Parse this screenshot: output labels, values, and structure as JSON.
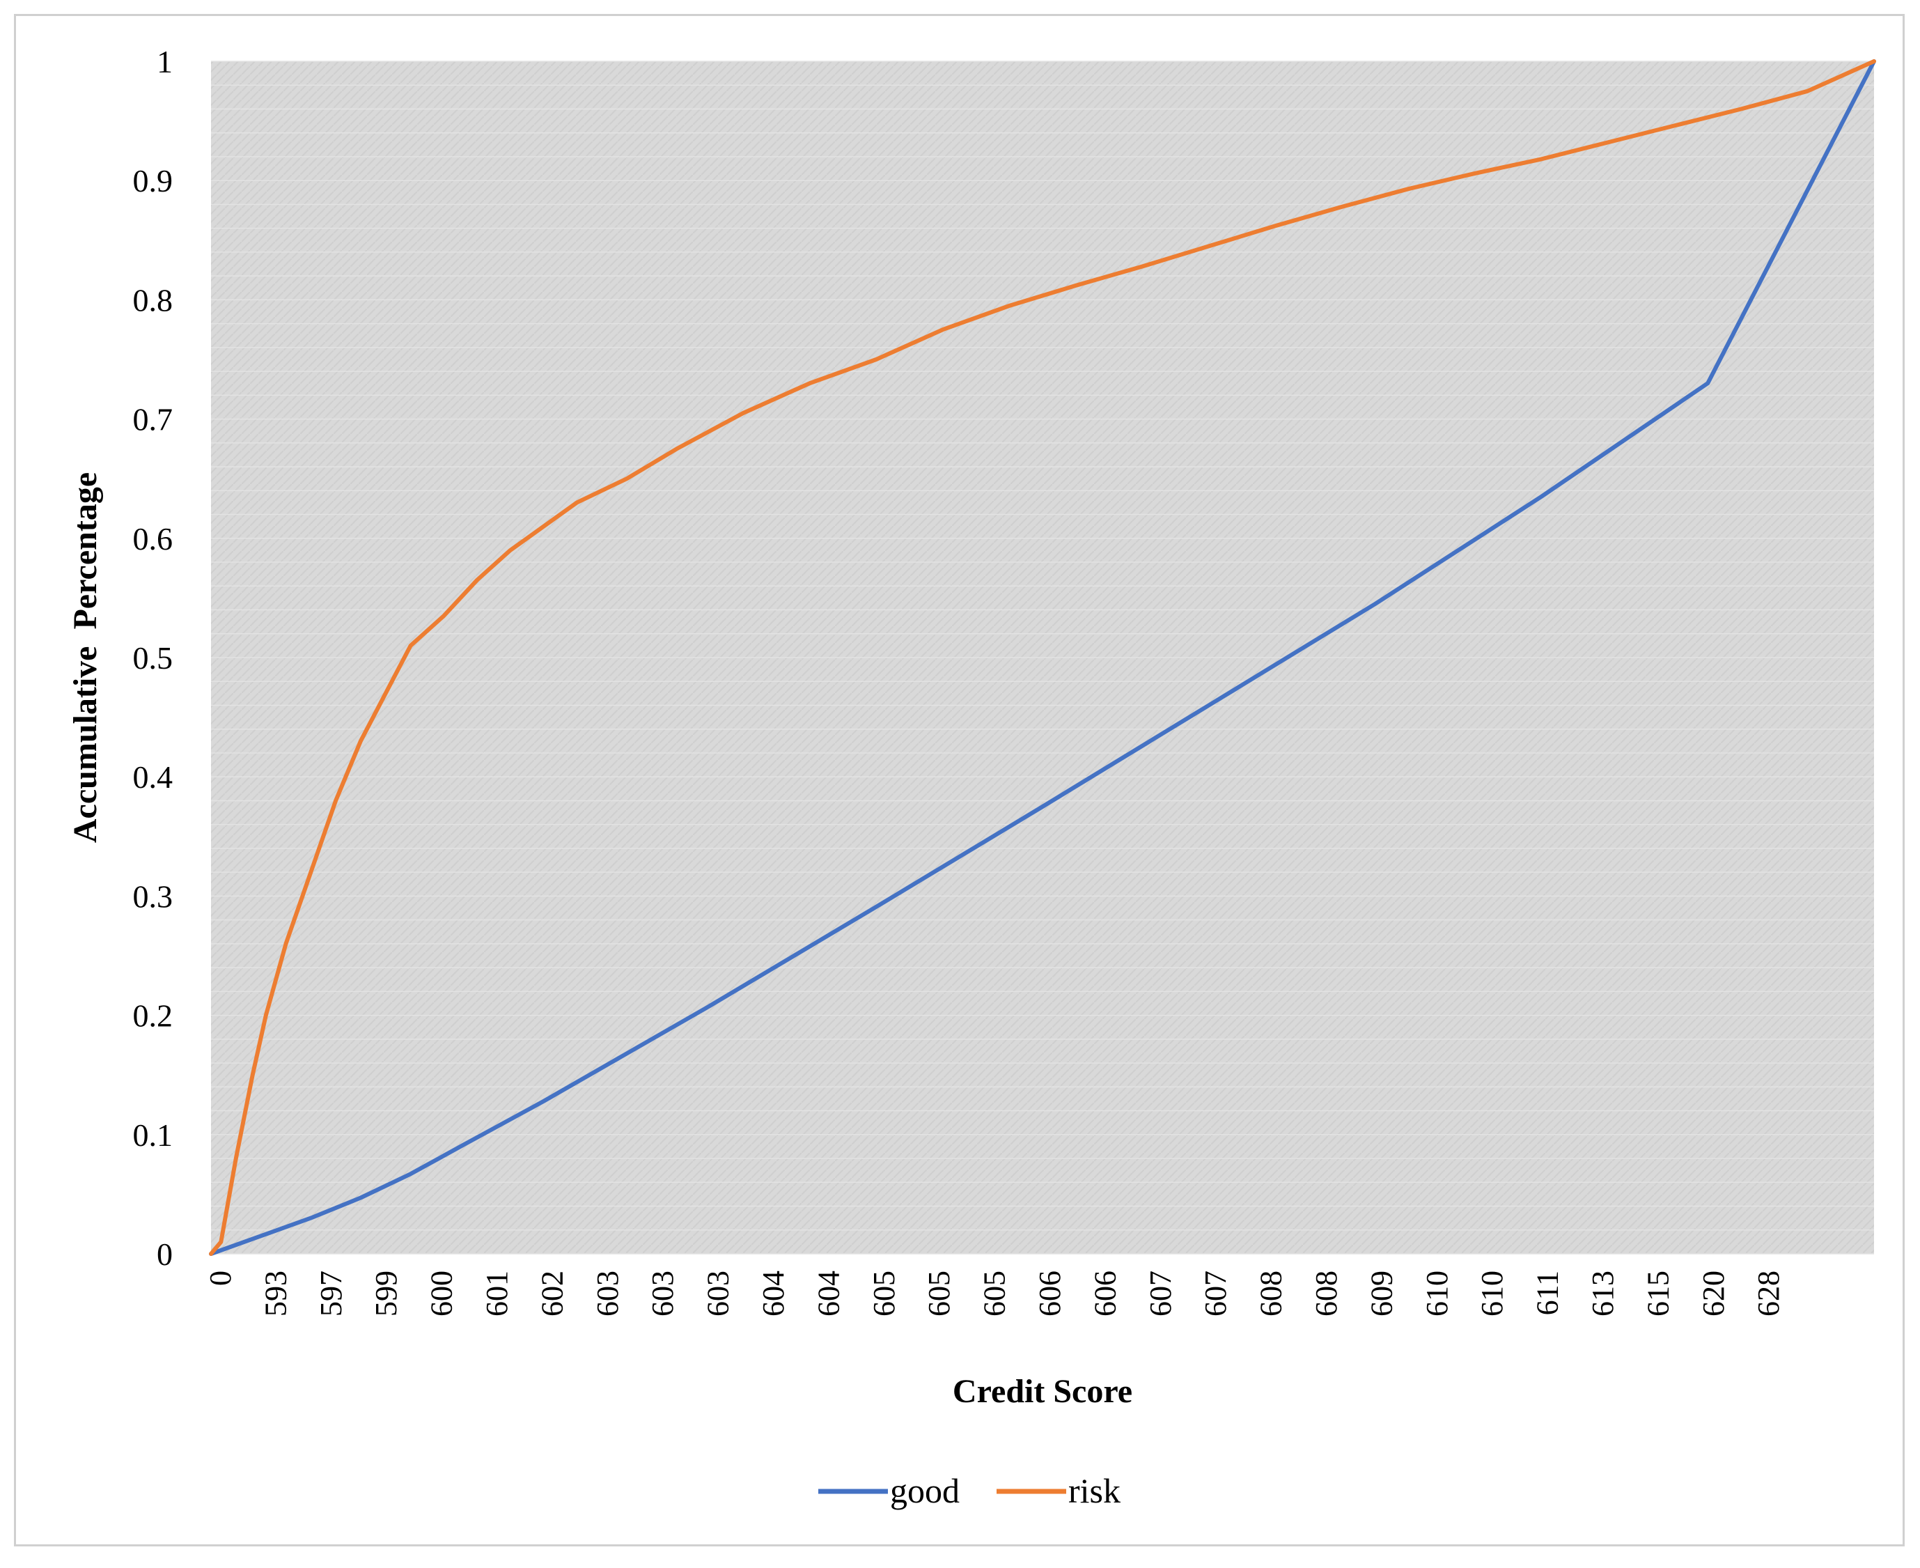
{
  "chart_data": {
    "type": "line",
    "title": "",
    "xlabel": "Credit Score",
    "ylabel": "Accumulative  Percentage",
    "ylim": [
      0,
      1
    ],
    "yticks": [
      "0",
      "0.1",
      "0.2",
      "0.3",
      "0.4",
      "0.5",
      "0.6",
      "0.7",
      "0.8",
      "0.9",
      "1"
    ],
    "categories": [
      "0",
      "593",
      "597",
      "599",
      "600",
      "601",
      "602",
      "603",
      "603",
      "603",
      "604",
      "604",
      "605",
      "605",
      "605",
      "606",
      "606",
      "607",
      "607",
      "608",
      "608",
      "609",
      "610",
      "610",
      "611",
      "613",
      "615",
      "620",
      "628"
    ],
    "grid": "horizontal minor gridlines",
    "plot_background": "#d9d9d9",
    "legend_position": "bottom",
    "series": [
      {
        "name": "good",
        "color": "#4472c4",
        "points": [
          [
            0,
            0
          ],
          [
            0.03,
            0.015
          ],
          [
            0.06,
            0.03
          ],
          [
            0.09,
            0.047
          ],
          [
            0.12,
            0.067
          ],
          [
            0.15,
            0.09
          ],
          [
            0.2,
            0.128
          ],
          [
            0.3,
            0.208
          ],
          [
            0.4,
            0.291
          ],
          [
            0.5,
            0.375
          ],
          [
            0.6,
            0.46
          ],
          [
            0.7,
            0.545
          ],
          [
            0.8,
            0.635
          ],
          [
            0.9,
            0.73
          ],
          [
            1.0,
            1.0
          ]
        ]
      },
      {
        "name": "risk",
        "color": "#ed7d31",
        "points": [
          [
            0,
            0
          ],
          [
            0.006,
            0.01
          ],
          [
            0.015,
            0.08
          ],
          [
            0.025,
            0.15
          ],
          [
            0.033,
            0.2
          ],
          [
            0.045,
            0.26
          ],
          [
            0.06,
            0.32
          ],
          [
            0.075,
            0.38
          ],
          [
            0.09,
            0.43
          ],
          [
            0.105,
            0.47
          ],
          [
            0.12,
            0.51
          ],
          [
            0.14,
            0.535
          ],
          [
            0.16,
            0.565
          ],
          [
            0.18,
            0.59
          ],
          [
            0.2,
            0.61
          ],
          [
            0.22,
            0.63
          ],
          [
            0.25,
            0.65
          ],
          [
            0.28,
            0.675
          ],
          [
            0.32,
            0.705
          ],
          [
            0.36,
            0.73
          ],
          [
            0.4,
            0.75
          ],
          [
            0.44,
            0.775
          ],
          [
            0.48,
            0.795
          ],
          [
            0.52,
            0.812
          ],
          [
            0.56,
            0.828
          ],
          [
            0.6,
            0.845
          ],
          [
            0.64,
            0.862
          ],
          [
            0.68,
            0.878
          ],
          [
            0.72,
            0.893
          ],
          [
            0.76,
            0.906
          ],
          [
            0.8,
            0.918
          ],
          [
            0.84,
            0.932
          ],
          [
            0.88,
            0.946
          ],
          [
            0.92,
            0.96
          ],
          [
            0.96,
            0.975
          ],
          [
            1.0,
            1.0
          ]
        ]
      }
    ]
  }
}
